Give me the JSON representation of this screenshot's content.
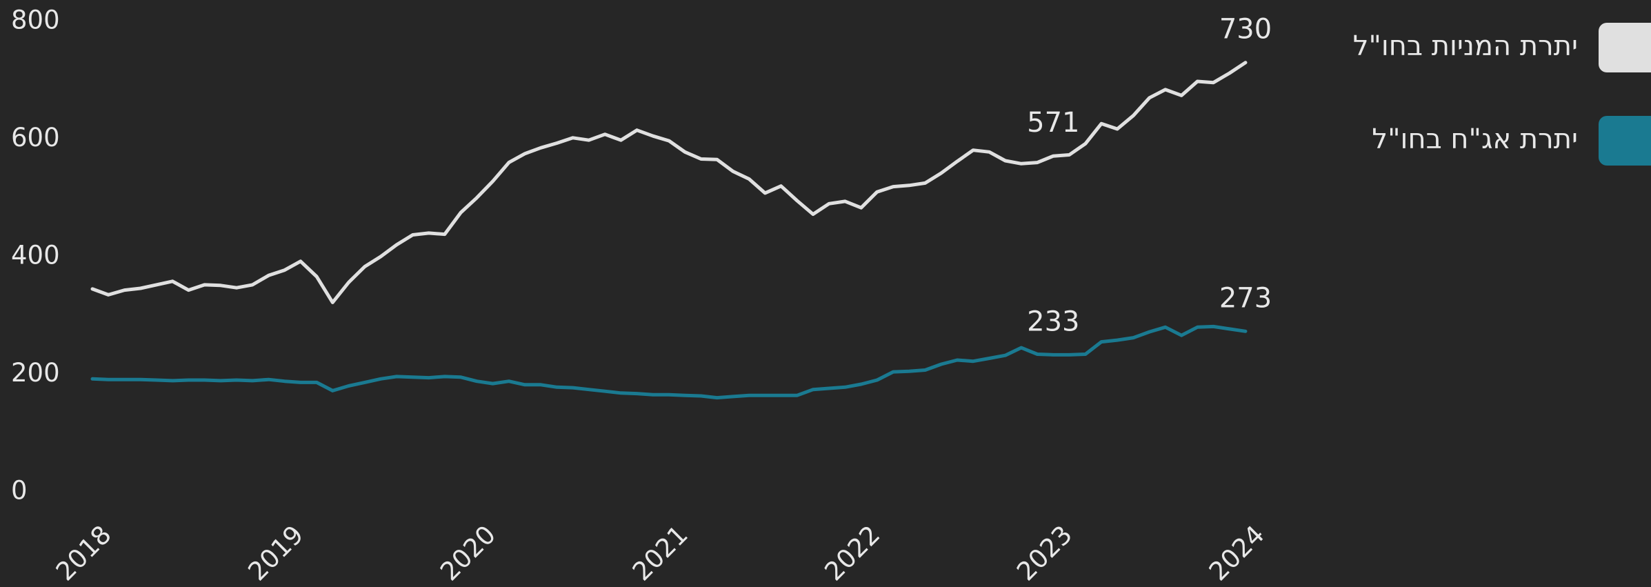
{
  "chart_data": {
    "type": "line",
    "x": [
      2018,
      2018.083,
      2018.167,
      2018.25,
      2018.333,
      2018.417,
      2018.5,
      2018.583,
      2018.667,
      2018.75,
      2018.833,
      2018.917,
      2019,
      2019.083,
      2019.167,
      2019.25,
      2019.333,
      2019.417,
      2019.5,
      2019.583,
      2019.667,
      2019.75,
      2019.833,
      2019.917,
      2020,
      2020.083,
      2020.167,
      2020.25,
      2020.333,
      2020.417,
      2020.5,
      2020.583,
      2020.667,
      2020.75,
      2020.833,
      2020.917,
      2021,
      2021.083,
      2021.167,
      2021.25,
      2021.333,
      2021.417,
      2021.5,
      2021.583,
      2021.667,
      2021.75,
      2021.833,
      2021.917,
      2022,
      2022.083,
      2022.167,
      2022.25,
      2022.333,
      2022.417,
      2022.5,
      2022.583,
      2022.667,
      2022.75,
      2022.833,
      2022.917,
      2023,
      2023.083,
      2023.167,
      2023.25,
      2023.333,
      2023.417,
      2023.5,
      2023.583,
      2023.667,
      2023.75,
      2023.833,
      2023.917,
      2024
    ],
    "series": [
      {
        "name": "יתרת המניות בחו\"ל",
        "color": "#e0e0e0",
        "values": [
          345,
          335,
          343,
          346,
          352,
          358,
          343,
          352,
          351,
          347,
          352,
          368,
          377,
          392,
          366,
          322,
          356,
          383,
          400,
          420,
          437,
          440,
          438,
          475,
          500,
          528,
          560,
          575,
          585,
          593,
          602,
          598,
          608,
          598,
          615,
          605,
          597,
          578,
          566,
          565,
          545,
          532,
          508,
          520,
          495,
          472,
          490,
          494,
          483,
          510,
          519,
          521,
          525,
          542,
          562,
          581,
          578,
          563,
          558,
          560,
          571,
          573,
          592,
          626,
          617,
          640,
          670,
          684,
          674,
          698,
          696,
          712,
          730
        ]
      },
      {
        "name": "יתרת אג\"ח בחו\"ל",
        "color": "#1a7a91",
        "values": [
          192,
          191,
          191,
          191,
          190,
          189,
          190,
          190,
          189,
          190,
          189,
          191,
          188,
          186,
          186,
          172,
          180,
          186,
          192,
          196,
          195,
          194,
          196,
          195,
          188,
          184,
          188,
          182,
          182,
          178,
          177,
          174,
          171,
          168,
          167,
          165,
          165,
          164,
          163,
          160,
          162,
          164,
          164,
          164,
          164,
          174,
          176,
          178,
          183,
          190,
          204,
          205,
          207,
          217,
          224,
          222,
          227,
          232,
          245,
          234,
          233,
          233,
          234,
          255,
          258,
          262,
          272,
          280,
          266,
          280,
          281,
          277,
          273
        ]
      }
    ],
    "xlim": [
      2018,
      2024
    ],
    "xticks": [
      2018,
      2019,
      2020,
      2021,
      2022,
      2023,
      2024
    ],
    "ylim": [
      0,
      800
    ],
    "yticks": [
      0,
      200,
      400,
      600,
      800
    ]
  }
}
